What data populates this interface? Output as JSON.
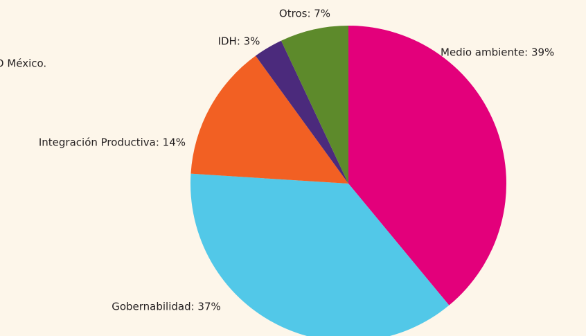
{
  "note": "D México.",
  "chart_data": {
    "type": "pie",
    "values": [
      39,
      37,
      14,
      3,
      7
    ],
    "value_labels": [
      "Medio ambiente: 39%",
      "Gobernabilidad: 37%",
      "Integración Productiva: 14%",
      "IDH: 3%",
      "Otros: 7%"
    ],
    "colors": [
      "#e3007b",
      "#52c8e8",
      "#f26023",
      "#4b2a7c",
      "#5d8a2b"
    ]
  }
}
